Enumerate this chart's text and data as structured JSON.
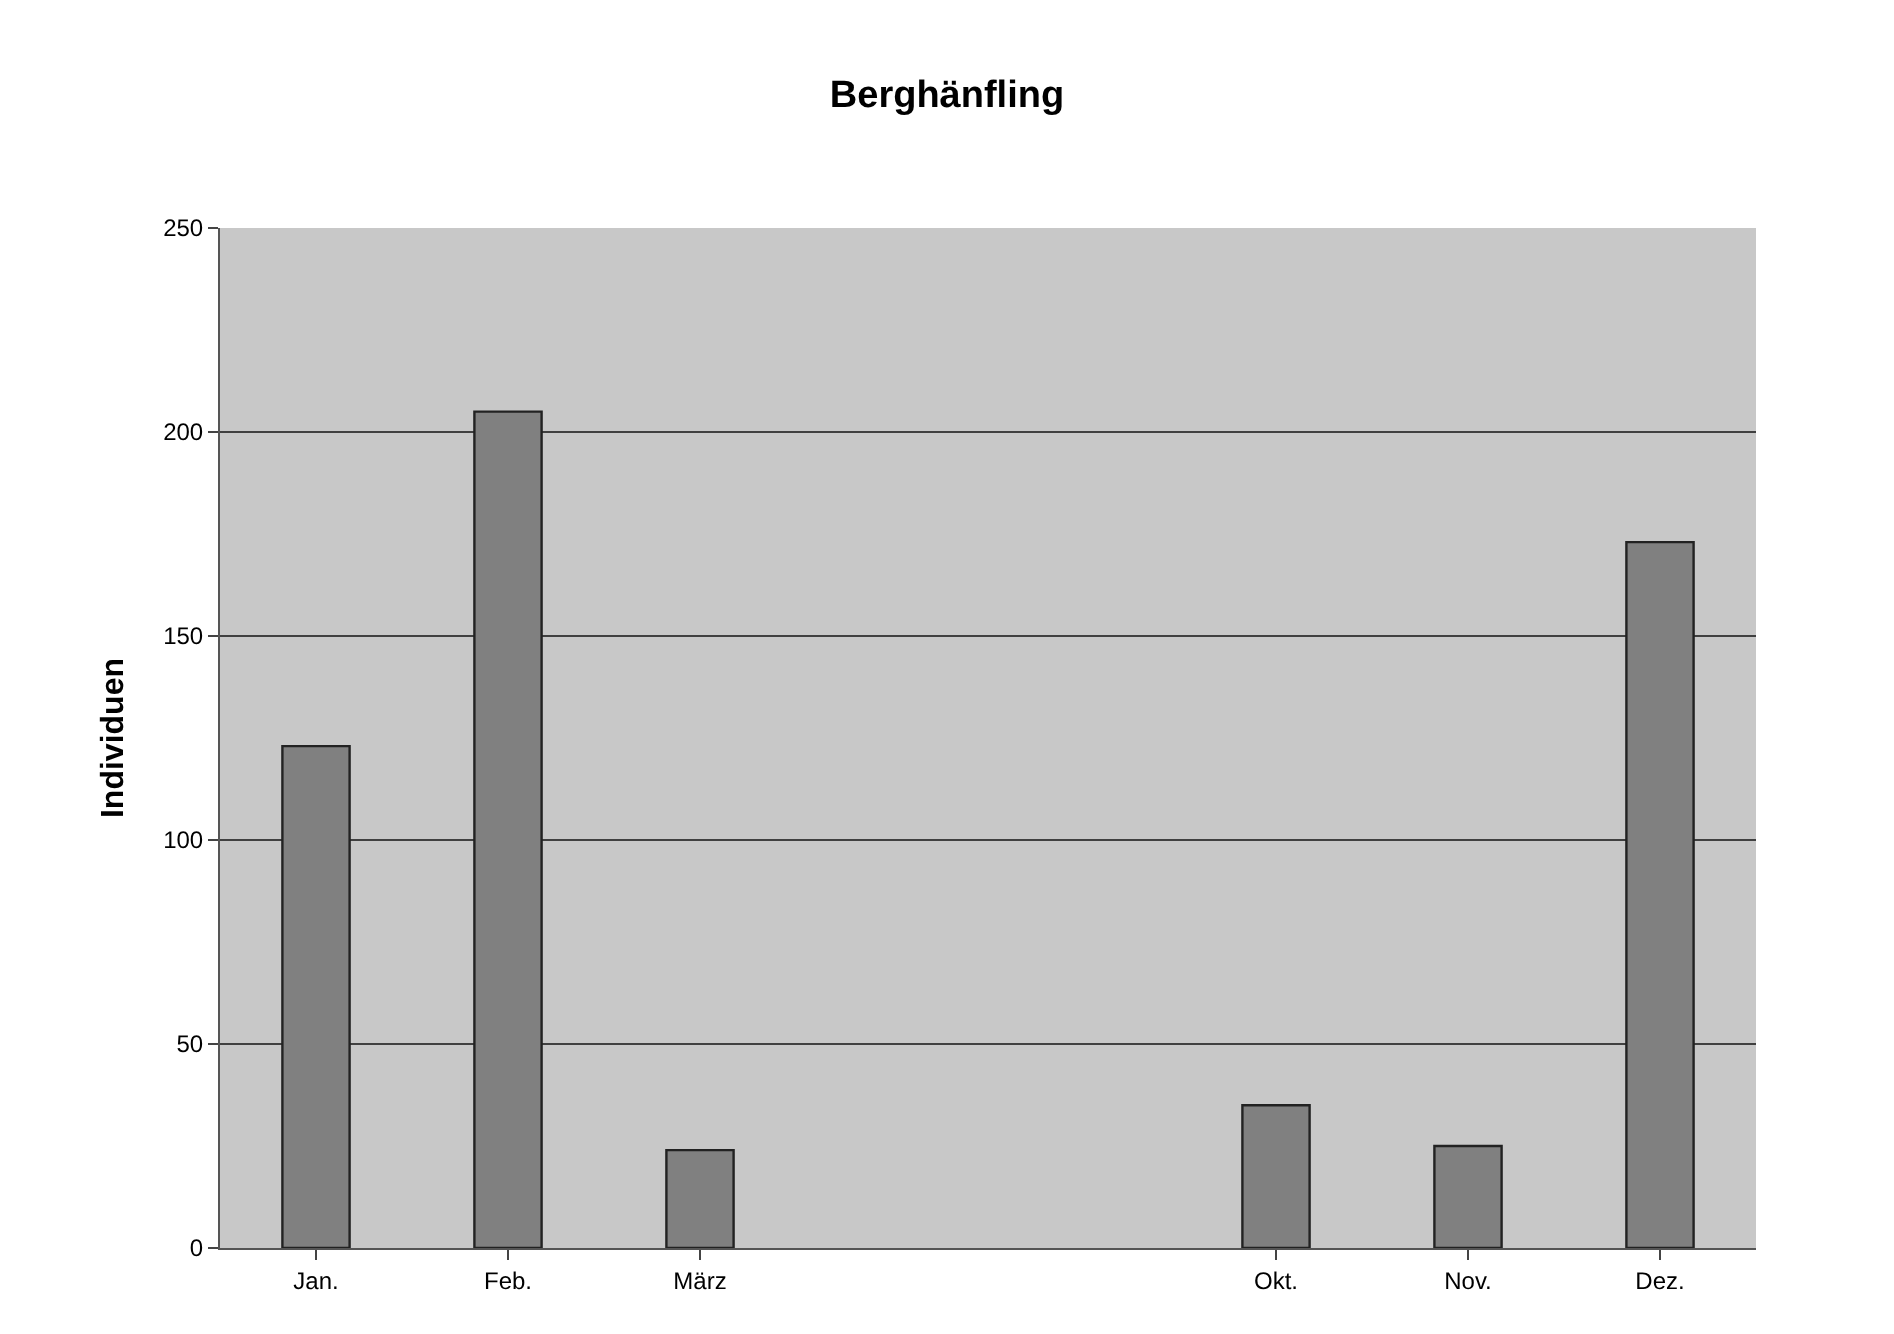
{
  "chart_data": {
    "type": "bar",
    "title": "Berghänfling",
    "ylabel": "Individuen",
    "categories": [
      "Jan.",
      "Feb.",
      "März",
      null,
      null,
      "Okt.",
      "Nov.",
      "Dez."
    ],
    "values": [
      123,
      205,
      24,
      null,
      null,
      35,
      25,
      173
    ],
    "color": "#808080",
    "ylim": [
      0,
      250
    ],
    "yticks": [
      0,
      50,
      100,
      150,
      200,
      250
    ],
    "grid": "y"
  }
}
